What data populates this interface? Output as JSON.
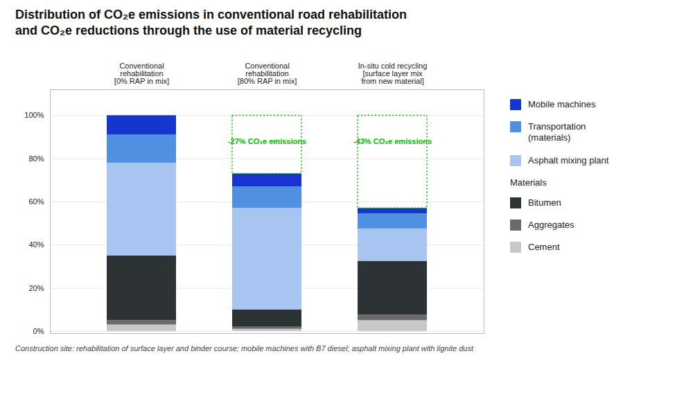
{
  "chart_data": {
    "type": "bar",
    "stacked": true,
    "title": "Distribution of CO₂e emissions in conventional road rehabilitation\nand CO₂e reductions through the use of material recycling",
    "caption": "Construction site: rehabilitation of surface layer and binder course; mobile machines with B7 diesel; asphalt mixing plant with lignite dust",
    "categories": [
      "Conventional\nrehabilitation\n[0% RAP in mix]",
      "Conventional\nrehabilitation\n[80% RAP in mix]",
      "In-situ cold recycling\n[surface layer mix\nfrom new material]"
    ],
    "series": [
      {
        "name": "Cement",
        "color": "#c8c8c8",
        "values": [
          3.0,
          1.0,
          5.0
        ]
      },
      {
        "name": "Aggregates",
        "color": "#6a6a6a",
        "values": [
          2.0,
          1.0,
          2.5
        ]
      },
      {
        "name": "Bitumen",
        "color": "#2d3335",
        "values": [
          30.0,
          8.0,
          25.0
        ]
      },
      {
        "name": "Asphalt mixing plant",
        "color": "#a8c4f0",
        "values": [
          43.0,
          47.0,
          15.0
        ]
      },
      {
        "name": "Transportation\n(materials)",
        "color": "#5090e0",
        "values": [
          13.0,
          10.0,
          7.0
        ]
      },
      {
        "name": "Mobile machines",
        "color": "#1535cc",
        "values": [
          9.0,
          6.0,
          2.5
        ]
      }
    ],
    "ylim": [
      -1,
      112
    ],
    "yticks": [
      {
        "value": 0,
        "label": "0%"
      },
      {
        "value": 20,
        "label": "20%"
      },
      {
        "value": 40,
        "label": "40%"
      },
      {
        "value": 60,
        "label": "60%"
      },
      {
        "value": 80,
        "label": "80%"
      },
      {
        "value": 100,
        "label": "100%"
      }
    ],
    "grid": true,
    "legend": "right",
    "legend_groups": [
      {
        "series": [
          "Mobile machines",
          "Transportation\n(materials)",
          "Asphalt mixing plant"
        ]
      },
      {
        "title": "Materials",
        "series": [
          "Bitumen",
          "Aggregates",
          "Cement"
        ]
      }
    ],
    "annotations": [
      {
        "text": "-27% CO₂e emissions",
        "category": "Conventional\nrehabilitation\n[80% RAP in mix]",
        "y": 88,
        "box": [
          73,
          100
        ],
        "color": "#00bb00"
      },
      {
        "text": "-43% CO₂e emissions",
        "category": "In-situ cold recycling\n[surface layer mix\nfrom new material]",
        "y": 88,
        "box": [
          57,
          100
        ],
        "color": "#00bb00"
      }
    ]
  }
}
